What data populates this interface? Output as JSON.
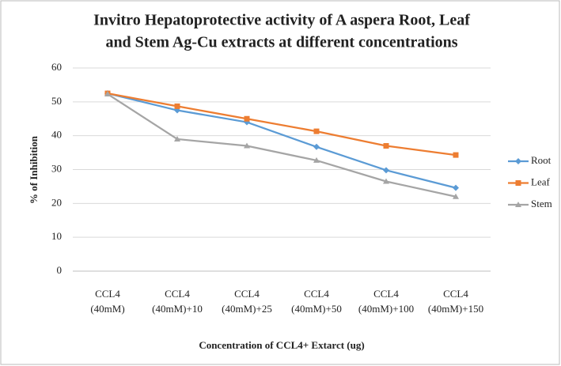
{
  "chart_data": {
    "type": "line",
    "title": [
      "Invitro Hepatoprotective activity of A aspera Root, Leaf",
      "and Stem Ag-Cu extracts at different concentrations"
    ],
    "x_label": "Concentration of CCL4+ Extarct (ug)",
    "y_label": "% of Inhibition",
    "categories": [
      "CCL4 (40mM)",
      "CCL4 (40mM)+10",
      "CCL4 (40mM)+25",
      "CCL4 (40mM)+50",
      "CCL4 (40mM)+100",
      "CCL4 (40mM)+150"
    ],
    "series": [
      {
        "name": "Root",
        "color": "#5b9bd5",
        "marker": "diamond",
        "values": [
          52.5,
          47.5,
          44,
          36.7,
          29.8,
          24.6
        ]
      },
      {
        "name": "Leaf",
        "color": "#ed7d31",
        "marker": "square",
        "values": [
          52.5,
          48.7,
          45,
          41.3,
          37,
          34.3
        ]
      },
      {
        "name": "Stem",
        "color": "#a5a5a5",
        "marker": "triangle",
        "values": [
          52.3,
          39,
          37,
          32.7,
          26.5,
          22
        ]
      }
    ],
    "ylim": [
      0,
      60
    ],
    "yticks": [
      0,
      10,
      20,
      30,
      40,
      50,
      60
    ],
    "grid": true,
    "legend": "right"
  }
}
